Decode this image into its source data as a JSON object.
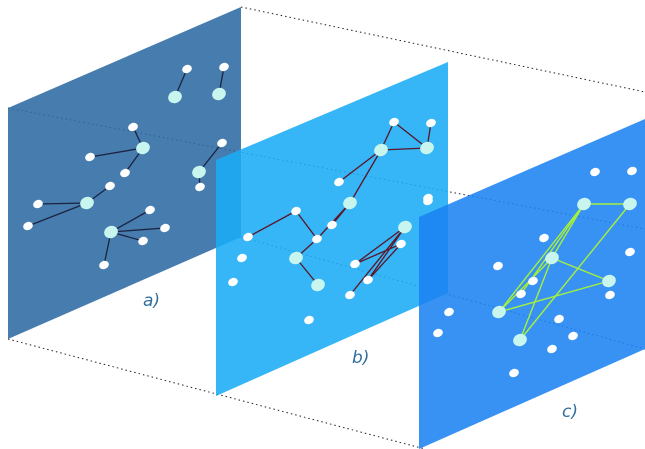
{
  "panels": [
    {
      "id": "a",
      "label": "a)",
      "color": "#2e6aa3",
      "opacity": 0.88,
      "edge_color": "#1a2440",
      "nodes": [
        [
          187,
          69,
          "s"
        ],
        [
          175,
          97,
          "l"
        ],
        [
          224,
          67,
          "s"
        ],
        [
          219,
          94,
          "l"
        ],
        [
          133,
          127,
          "s"
        ],
        [
          143,
          148,
          "l"
        ],
        [
          90,
          157,
          "s"
        ],
        [
          125,
          173,
          "s"
        ],
        [
          110,
          186,
          "s"
        ],
        [
          87,
          203,
          "l"
        ],
        [
          38,
          204,
          "s"
        ],
        [
          28,
          226,
          "s"
        ],
        [
          150,
          210,
          "s"
        ],
        [
          165,
          228,
          "s"
        ],
        [
          111,
          232,
          "l"
        ],
        [
          143,
          241,
          "s"
        ],
        [
          104,
          265,
          "s"
        ],
        [
          222,
          143,
          "s"
        ],
        [
          199,
          172,
          "l"
        ],
        [
          200,
          187,
          "s"
        ]
      ],
      "edges": [
        [
          0,
          1
        ],
        [
          2,
          3
        ],
        [
          4,
          5
        ],
        [
          6,
          5
        ],
        [
          7,
          5
        ],
        [
          8,
          9
        ],
        [
          10,
          9
        ],
        [
          11,
          9
        ],
        [
          12,
          14
        ],
        [
          13,
          14
        ],
        [
          15,
          14
        ],
        [
          16,
          14
        ],
        [
          17,
          18
        ],
        [
          18,
          19
        ]
      ]
    },
    {
      "id": "b",
      "label": "b)",
      "color": "#1aacf5",
      "opacity": 0.88,
      "edge_color": "#5a1528",
      "nodes": [
        [
          394,
          122,
          "s"
        ],
        [
          431,
          123,
          "s"
        ],
        [
          381,
          150,
          "l"
        ],
        [
          427,
          148,
          "l"
        ],
        [
          339,
          182,
          "s"
        ],
        [
          350,
          203,
          "l"
        ],
        [
          296,
          211,
          "s"
        ],
        [
          332,
          225,
          "s"
        ],
        [
          317,
          239,
          "s"
        ],
        [
          248,
          237,
          "s"
        ],
        [
          296,
          258,
          "l"
        ],
        [
          242,
          258,
          "s"
        ],
        [
          318,
          285,
          "l"
        ],
        [
          355,
          264,
          "s"
        ],
        [
          405,
          227,
          "l"
        ],
        [
          401,
          244,
          "s"
        ],
        [
          368,
          280,
          "s"
        ],
        [
          350,
          295,
          "s"
        ],
        [
          428,
          198,
          "s"
        ],
        [
          233,
          282,
          "s"
        ],
        [
          309,
          320,
          "s"
        ]
      ],
      "edges": [
        [
          0,
          3
        ],
        [
          1,
          3
        ],
        [
          0,
          2
        ],
        [
          2,
          3
        ],
        [
          2,
          4
        ],
        [
          2,
          5
        ],
        [
          5,
          7
        ],
        [
          5,
          8
        ],
        [
          8,
          6
        ],
        [
          6,
          9
        ],
        [
          8,
          10
        ],
        [
          10,
          12
        ],
        [
          14,
          13
        ],
        [
          14,
          16
        ],
        [
          14,
          17
        ],
        [
          15,
          16
        ],
        [
          13,
          15
        ]
      ]
    },
    {
      "id": "c",
      "label": "c)",
      "color": "#1c83f2",
      "opacity": 0.88,
      "edge_color": "#a6f03c",
      "nodes": [
        [
          595,
          172,
          "s"
        ],
        [
          632,
          171,
          "s"
        ],
        [
          584,
          204,
          "l"
        ],
        [
          630,
          204,
          "l"
        ],
        [
          428,
          201,
          "s"
        ],
        [
          544,
          238,
          "s"
        ],
        [
          552,
          258,
          "l"
        ],
        [
          498,
          266,
          "s"
        ],
        [
          630,
          252,
          "s"
        ],
        [
          609,
          281,
          "l"
        ],
        [
          521,
          294,
          "s"
        ],
        [
          533,
          281,
          "s"
        ],
        [
          610,
          295,
          "s"
        ],
        [
          499,
          312,
          "l"
        ],
        [
          449,
          312,
          "s"
        ],
        [
          559,
          319,
          "s"
        ],
        [
          520,
          340,
          "l"
        ],
        [
          573,
          336,
          "s"
        ],
        [
          438,
          333,
          "s"
        ],
        [
          552,
          349,
          "s"
        ],
        [
          514,
          373,
          "s"
        ]
      ],
      "edges": [
        [
          2,
          3
        ],
        [
          2,
          6
        ],
        [
          6,
          9
        ],
        [
          6,
          13
        ],
        [
          6,
          16
        ],
        [
          2,
          10
        ],
        [
          2,
          13
        ],
        [
          3,
          16
        ],
        [
          9,
          13
        ]
      ]
    }
  ]
}
